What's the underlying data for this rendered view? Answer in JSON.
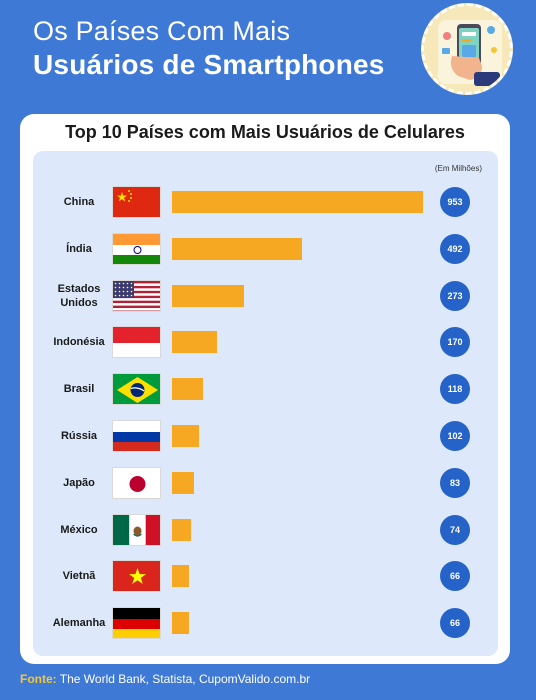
{
  "header": {
    "title_line1": "Os Países Com Mais",
    "title_line2": "Usuários de Smartphones"
  },
  "colors": {
    "background": "#3f79d6",
    "bar": "#f6a823",
    "value_badge": "#2563c8",
    "panel": "#dde9fb",
    "source_label": "#f6c533"
  },
  "chart_data": {
    "type": "bar",
    "orientation": "horizontal",
    "title": "Top 10 Países com Mais Usuários de Celulares",
    "unit_label": "(Em Milhões)",
    "categories": [
      "China",
      "Índia",
      "Estados Unidos",
      "Indonésia",
      "Brasil",
      "Rússia",
      "Japão",
      "México",
      "Vietnã",
      "Alemanha"
    ],
    "category_lines": [
      [
        "China"
      ],
      [
        "Índia"
      ],
      [
        "Estados",
        "Unidos"
      ],
      [
        "Indonésia"
      ],
      [
        "Brasil"
      ],
      [
        "Rússia"
      ],
      [
        "Japão"
      ],
      [
        "México"
      ],
      [
        "Vietnã"
      ],
      [
        "Alemanha"
      ]
    ],
    "flags": [
      "china-flag-icon",
      "india-flag-icon",
      "usa-flag-icon",
      "indonesia-flag-icon",
      "brazil-flag-icon",
      "russia-flag-icon",
      "japan-flag-icon",
      "mexico-flag-icon",
      "vietnam-flag-icon",
      "germany-flag-icon"
    ],
    "values": [
      953,
      492,
      273,
      170,
      118,
      102,
      83,
      74,
      66,
      66
    ],
    "xlim": [
      0,
      953
    ],
    "grid": false
  },
  "footer": {
    "label": "Fonte:",
    "text": "The World Bank, Statista, CupomValido.com.br"
  }
}
